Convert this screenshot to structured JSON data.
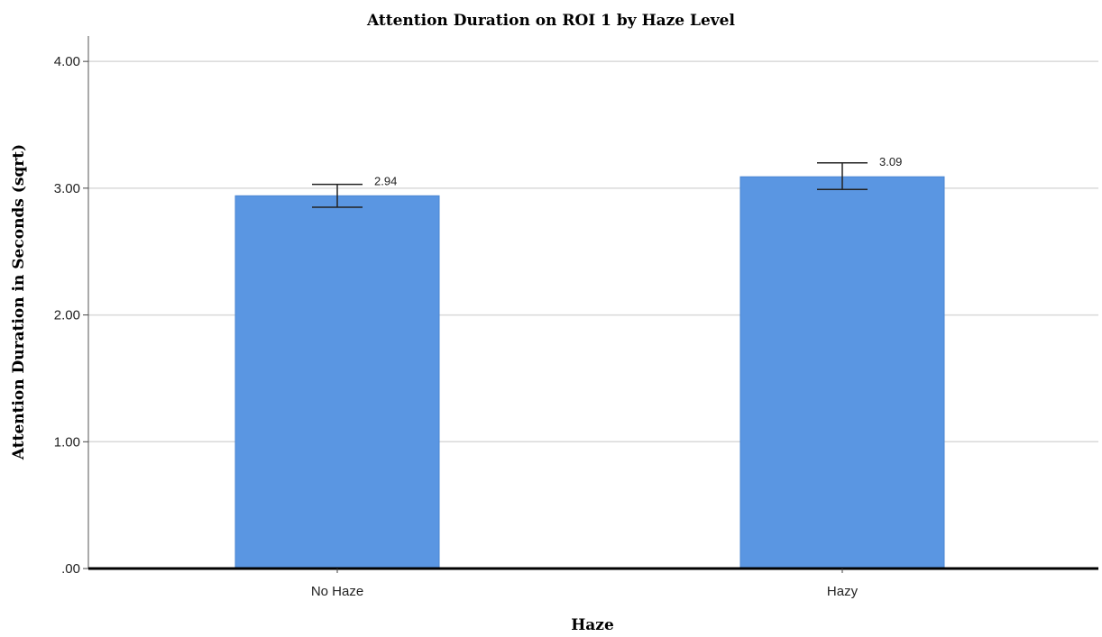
{
  "chart_data": {
    "type": "bar",
    "title": "Attention Duration on ROI 1 by Haze Level",
    "xlabel": "Haze",
    "ylabel": "Attention Duration in Seconds (sqrt)",
    "categories": [
      "No Haze",
      "Hazy"
    ],
    "values": [
      2.94,
      3.09
    ],
    "value_labels": [
      "2.94",
      "3.09"
    ],
    "error_bars": [
      {
        "low": 2.85,
        "high": 3.03
      },
      {
        "low": 2.99,
        "high": 3.2
      }
    ],
    "ylim": [
      0,
      4.2
    ],
    "yticks": [
      0,
      1,
      2,
      3,
      4
    ],
    "ytick_labels": [
      ".00",
      "1.00",
      "2.00",
      "3.00",
      "4.00"
    ],
    "grid": true,
    "colors": {
      "bar": "#5A96E2",
      "bar_edge": "#4A86D2",
      "grid": "#d9d9d9",
      "axis": "#000000",
      "error_bar": "#222222"
    }
  }
}
